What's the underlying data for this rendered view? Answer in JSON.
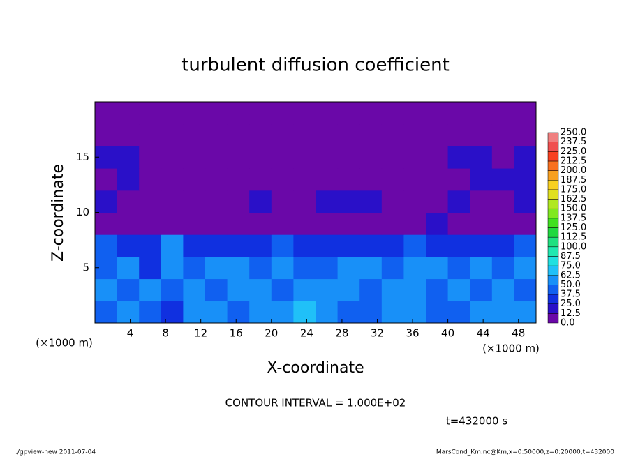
{
  "chart_data": {
    "type": "heatmap",
    "title": "turbulent diffusion coefficient",
    "xlabel": "X-coordinate",
    "ylabel": "Z-coordinate",
    "x_unit": "(×1000 m)",
    "y_unit": "(×1000 m)",
    "contour_interval": "CONTOUR INTERVAL = 1.000E+02",
    "time_label": "t=432000 s",
    "footer_left": "./gpview-new  2011-07-04",
    "footer_right": "MarsCond_Km.nc@Km,x=0:50000,z=0:20000,t=432000",
    "xlim": [
      0,
      50
    ],
    "xticks": [
      4,
      8,
      12,
      16,
      20,
      24,
      28,
      32,
      36,
      40,
      44,
      48
    ],
    "ylim": [
      0,
      20
    ],
    "yticks": [
      5,
      10,
      15
    ],
    "x": [
      1.25,
      3.75,
      6.25,
      8.75,
      11.25,
      13.75,
      16.25,
      18.75,
      21.25,
      23.75,
      26.25,
      28.75,
      31.25,
      33.75,
      36.25,
      38.75,
      41.25,
      43.75,
      46.25,
      48.75
    ],
    "y": [
      1,
      3,
      5,
      7,
      9,
      11,
      13,
      15,
      17,
      19
    ],
    "z": [
      [
        45,
        50,
        40,
        35,
        55,
        50,
        45,
        60,
        55,
        65,
        50,
        45,
        40,
        55,
        60,
        40,
        45,
        50,
        55,
        50
      ],
      [
        50,
        40,
        55,
        45,
        60,
        45,
        50,
        55,
        45,
        50,
        60,
        55,
        40,
        60,
        55,
        45,
        50,
        40,
        60,
        45
      ],
      [
        45,
        55,
        35,
        60,
        45,
        50,
        60,
        45,
        55,
        40,
        45,
        50,
        55,
        45,
        60,
        50,
        40,
        55,
        45,
        50
      ],
      [
        40,
        35,
        30,
        55,
        35,
        30,
        35,
        30,
        40,
        30,
        25,
        30,
        35,
        30,
        45,
        35,
        30,
        35,
        30,
        40
      ],
      [
        5,
        5,
        5,
        5,
        8,
        5,
        5,
        5,
        5,
        5,
        5,
        5,
        10,
        5,
        5,
        15,
        5,
        5,
        5,
        8
      ],
      [
        15,
        8,
        5,
        10,
        5,
        5,
        10,
        15,
        5,
        10,
        15,
        20,
        15,
        5,
        8,
        5,
        15,
        10,
        5,
        20
      ],
      [
        10,
        15,
        5,
        5,
        8,
        5,
        5,
        5,
        5,
        5,
        5,
        10,
        5,
        5,
        5,
        10,
        5,
        15,
        20,
        15
      ],
      [
        20,
        15,
        10,
        5,
        5,
        5,
        5,
        5,
        5,
        5,
        5,
        5,
        5,
        5,
        5,
        5,
        20,
        15,
        10,
        15
      ],
      [
        3,
        3,
        3,
        3,
        3,
        3,
        3,
        3,
        3,
        3,
        3,
        3,
        3,
        3,
        3,
        3,
        3,
        3,
        3,
        3
      ],
      [
        3,
        3,
        3,
        3,
        3,
        3,
        3,
        3,
        3,
        3,
        3,
        3,
        3,
        3,
        3,
        3,
        3,
        3,
        3,
        3
      ]
    ],
    "levels": [
      {
        "value": 0,
        "label": "0.0"
      },
      12.5,
      {
        "value": 25,
        "label": "25.0"
      },
      37.5,
      {
        "value": 50,
        "label": "50.0"
      },
      62.5,
      {
        "value": 75,
        "label": "75.0"
      },
      87.5,
      {
        "value": 100,
        "label": "100.0"
      },
      112.5,
      {
        "value": 125,
        "label": "125.0"
      },
      137.5,
      {
        "value": 150,
        "label": "150.0"
      },
      162.5,
      {
        "value": 175,
        "label": "175.0"
      },
      187.5,
      {
        "value": 200,
        "label": "200.0"
      },
      212.5,
      {
        "value": 225,
        "label": "225.0"
      },
      237.5,
      {
        "value": 250,
        "label": "250.0"
      }
    ],
    "colors": [
      "#6a08a8",
      "#2a10c8",
      "#1030e0",
      "#1060f0",
      "#1890f8",
      "#20c0f8",
      "#20e0e0",
      "#20e8b0",
      "#20e080",
      "#20d840",
      "#40e020",
      "#80e820",
      "#b0e820",
      "#e0e020",
      "#f8d020",
      "#f8a020",
      "#f87020",
      "#f84020",
      "#f05050",
      "#f08080"
    ]
  }
}
